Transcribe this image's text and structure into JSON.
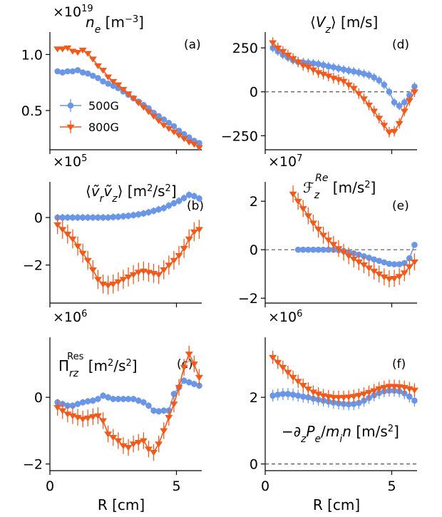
{
  "xlabel": "R [cm]",
  "xticks": [
    0,
    5
  ],
  "xlim": [
    0,
    6
  ],
  "colors": {
    "500G": "#6a96e8",
    "800G": "#f25a1c"
  },
  "legend": {
    "entries": [
      "500G",
      "800G"
    ],
    "placement": "lower-left of panel (a)"
  },
  "chart_data": [
    {
      "id": "a",
      "type": "line",
      "panel_label": "(a)",
      "title": "n_e [m^-3]",
      "multiplier": "×10^19",
      "ylim": [
        0.15,
        1.2
      ],
      "yticks": [
        0.5,
        1.0
      ],
      "ytick_labels": [
        "0.5",
        "1.0"
      ],
      "zero_line": false,
      "series": [
        {
          "name": "500G",
          "marker": "circle",
          "x": [
            0.3,
            0.5,
            0.7,
            0.9,
            1.1,
            1.3,
            1.5,
            1.7,
            1.9,
            2.1,
            2.3,
            2.5,
            2.7,
            2.9,
            3.1,
            3.3,
            3.5,
            3.7,
            3.9,
            4.1,
            4.3,
            4.5,
            4.7,
            4.9,
            5.1,
            5.3,
            5.5,
            5.7,
            5.9
          ],
          "y": [
            0.85,
            0.84,
            0.85,
            0.85,
            0.86,
            0.84,
            0.83,
            0.81,
            0.79,
            0.76,
            0.74,
            0.72,
            0.7,
            0.67,
            0.64,
            0.61,
            0.58,
            0.55,
            0.52,
            0.48,
            0.45,
            0.42,
            0.39,
            0.36,
            0.32,
            0.29,
            0.26,
            0.23,
            0.21
          ],
          "err": 0.01
        },
        {
          "name": "800G",
          "marker": "triangle-down",
          "x": [
            0.3,
            0.5,
            0.7,
            0.9,
            1.1,
            1.3,
            1.5,
            1.7,
            1.9,
            2.1,
            2.3,
            2.5,
            2.7,
            2.9,
            3.1,
            3.3,
            3.5,
            3.7,
            3.9,
            4.1,
            4.3,
            4.5,
            4.7,
            4.9,
            5.1,
            5.3,
            5.5,
            5.7,
            5.9
          ],
          "y": [
            1.05,
            1.05,
            1.06,
            1.03,
            1.02,
            1.04,
            1.01,
            0.96,
            0.9,
            0.86,
            0.8,
            0.76,
            0.73,
            0.69,
            0.65,
            0.61,
            0.57,
            0.53,
            0.49,
            0.45,
            0.41,
            0.37,
            0.34,
            0.31,
            0.28,
            0.25,
            0.22,
            0.2,
            0.17
          ],
          "err": 0.015
        }
      ]
    },
    {
      "id": "d",
      "type": "line",
      "panel_label": "(d)",
      "title": "⟨V_z⟩ [m/s]",
      "multiplier": "",
      "ylim": [
        -330,
        340
      ],
      "yticks": [
        -250,
        0,
        250
      ],
      "ytick_labels": [
        "−250",
        "0",
        "250"
      ],
      "zero_line": true,
      "series": [
        {
          "name": "500G",
          "marker": "circle",
          "x": [
            0.3,
            0.5,
            0.7,
            0.9,
            1.1,
            1.3,
            1.5,
            1.7,
            1.9,
            2.1,
            2.3,
            2.5,
            2.7,
            2.9,
            3.1,
            3.3,
            3.5,
            3.7,
            3.9,
            4.1,
            4.3,
            4.5,
            4.7,
            4.9,
            5.1,
            5.3,
            5.5,
            5.7,
            5.9
          ],
          "y": [
            250,
            230,
            210,
            195,
            180,
            170,
            168,
            165,
            162,
            158,
            152,
            145,
            140,
            133,
            127,
            121,
            116,
            110,
            103,
            95,
            82,
            65,
            40,
            0,
            -60,
            -80,
            -60,
            -20,
            30
          ],
          "err": 25
        },
        {
          "name": "800G",
          "marker": "triangle-down",
          "x": [
            0.3,
            0.5,
            0.7,
            0.9,
            1.1,
            1.3,
            1.5,
            1.7,
            1.9,
            2.1,
            2.3,
            2.5,
            2.7,
            2.9,
            3.1,
            3.3,
            3.5,
            3.7,
            3.9,
            4.1,
            4.3,
            4.5,
            4.7,
            4.9,
            5.1,
            5.3,
            5.5,
            5.7,
            5.9
          ],
          "y": [
            280,
            250,
            230,
            210,
            190,
            170,
            150,
            140,
            125,
            110,
            100,
            90,
            78,
            70,
            60,
            40,
            20,
            -10,
            -40,
            -75,
            -110,
            -150,
            -190,
            -230,
            -225,
            -180,
            -110,
            -50,
            0
          ],
          "err": 30
        }
      ]
    },
    {
      "id": "b",
      "type": "line",
      "panel_label": "(b)",
      "title": "⟨ṽ_r ṽ_z⟩ [m²/s²]",
      "multiplier": "×10^5",
      "ylim": [
        -3.6,
        1.5
      ],
      "yticks": [
        -2,
        0
      ],
      "ytick_labels": [
        "−2",
        "0"
      ],
      "zero_line": false,
      "series": [
        {
          "name": "500G",
          "marker": "circle",
          "x": [
            0.3,
            0.5,
            0.7,
            0.9,
            1.1,
            1.3,
            1.5,
            1.7,
            1.9,
            2.1,
            2.3,
            2.5,
            2.7,
            2.9,
            3.1,
            3.3,
            3.5,
            3.7,
            3.9,
            4.1,
            4.3,
            4.5,
            4.7,
            4.9,
            5.1,
            5.3,
            5.5,
            5.7,
            5.9
          ],
          "y": [
            0,
            0,
            0,
            0,
            0,
            0,
            0,
            0,
            0,
            0,
            0,
            0.02,
            0.03,
            0.05,
            0.07,
            0.1,
            0.13,
            0.17,
            0.22,
            0.28,
            0.34,
            0.4,
            0.5,
            0.6,
            0.7,
            0.82,
            0.95,
            0.9,
            0.8
          ],
          "err": 0.15
        },
        {
          "name": "800G",
          "marker": "triangle-down",
          "x": [
            0.3,
            0.5,
            0.7,
            0.9,
            1.1,
            1.3,
            1.5,
            1.7,
            1.9,
            2.1,
            2.3,
            2.5,
            2.7,
            2.9,
            3.1,
            3.3,
            3.5,
            3.7,
            3.9,
            4.1,
            4.3,
            4.5,
            4.7,
            4.9,
            5.1,
            5.3,
            5.5,
            5.7,
            5.9
          ],
          "y": [
            -0.3,
            -0.5,
            -0.7,
            -0.9,
            -1.2,
            -1.5,
            -1.8,
            -2.2,
            -2.6,
            -2.8,
            -2.85,
            -2.8,
            -2.7,
            -2.6,
            -2.5,
            -2.4,
            -2.3,
            -2.25,
            -2.3,
            -2.35,
            -2.4,
            -2.2,
            -2.0,
            -1.8,
            -1.6,
            -1.3,
            -0.9,
            -0.6,
            -0.5
          ],
          "err": 0.4
        }
      ]
    },
    {
      "id": "e",
      "type": "line",
      "panel_label": "(e)",
      "title": "F_z^Re [m/s²]",
      "multiplier": "×10^7",
      "ylim": [
        -2.2,
        2.8
      ],
      "yticks": [
        -2,
        0,
        2
      ],
      "ytick_labels": [
        "−2",
        "0",
        "2"
      ],
      "zero_line": true,
      "series": [
        {
          "name": "500G",
          "marker": "circle",
          "x": [
            1.3,
            1.5,
            1.7,
            1.9,
            2.1,
            2.3,
            2.5,
            2.7,
            2.9,
            3.1,
            3.3,
            3.5,
            3.7,
            3.9,
            4.1,
            4.3,
            4.5,
            4.7,
            4.9,
            5.1,
            5.3,
            5.5,
            5.7,
            5.9
          ],
          "y": [
            0,
            0,
            0,
            0,
            0,
            0,
            0,
            0,
            -0.02,
            -0.05,
            -0.1,
            -0.15,
            -0.2,
            -0.27,
            -0.33,
            -0.4,
            -0.46,
            -0.52,
            -0.58,
            -0.6,
            -0.6,
            -0.55,
            -0.35,
            0.2
          ],
          "err": 0.12
        },
        {
          "name": "800G",
          "marker": "triangle-down",
          "x": [
            1.1,
            1.3,
            1.5,
            1.7,
            1.9,
            2.1,
            2.3,
            2.5,
            2.7,
            2.9,
            3.1,
            3.3,
            3.5,
            3.7,
            3.9,
            4.1,
            4.3,
            4.5,
            4.7,
            4.9,
            5.1,
            5.3,
            5.5,
            5.7,
            5.9
          ],
          "y": [
            2.3,
            2.0,
            1.7,
            1.4,
            1.1,
            0.85,
            0.6,
            0.4,
            0.22,
            0.05,
            -0.1,
            -0.25,
            -0.38,
            -0.5,
            -0.62,
            -0.75,
            -0.88,
            -1.0,
            -1.12,
            -1.2,
            -1.18,
            -1.1,
            -0.95,
            -0.7,
            -0.5
          ],
          "err": 0.35
        }
      ]
    },
    {
      "id": "c",
      "type": "line",
      "panel_label": "(c)",
      "title": "Π_rz^Res [m²/s²]",
      "multiplier": "×10^6",
      "ylim": [
        -2.2,
        1.8
      ],
      "yticks": [
        -2,
        0
      ],
      "ytick_labels": [
        "−2",
        "0"
      ],
      "zero_line": false,
      "series": [
        {
          "name": "500G",
          "marker": "circle",
          "x": [
            0.3,
            0.5,
            0.7,
            0.9,
            1.1,
            1.3,
            1.5,
            1.7,
            1.9,
            2.1,
            2.3,
            2.5,
            2.7,
            2.9,
            3.1,
            3.3,
            3.5,
            3.7,
            3.9,
            4.1,
            4.3,
            4.5,
            4.7,
            4.9,
            5.1,
            5.3,
            5.5,
            5.7,
            5.9
          ],
          "y": [
            -0.15,
            -0.2,
            -0.25,
            -0.25,
            -0.2,
            -0.15,
            -0.12,
            -0.1,
            -0.05,
            0.05,
            0.0,
            -0.05,
            -0.05,
            -0.05,
            -0.05,
            -0.05,
            -0.1,
            -0.15,
            -0.25,
            -0.4,
            -0.42,
            -0.4,
            -0.4,
            0.1,
            0.3,
            0.5,
            0.45,
            0.4,
            0.35
          ],
          "err": 0.1
        },
        {
          "name": "800G",
          "marker": "triangle-down",
          "x": [
            0.3,
            0.5,
            0.7,
            0.9,
            1.1,
            1.3,
            1.5,
            1.7,
            1.9,
            2.1,
            2.3,
            2.5,
            2.7,
            2.9,
            3.1,
            3.3,
            3.5,
            3.7,
            3.9,
            4.1,
            4.3,
            4.5,
            4.7,
            4.9,
            5.1,
            5.3,
            5.5,
            5.7,
            5.9
          ],
          "y": [
            -0.3,
            -0.4,
            -0.5,
            -0.55,
            -0.6,
            -0.65,
            -0.62,
            -0.58,
            -0.55,
            -0.7,
            -1.1,
            -1.2,
            -1.3,
            -1.45,
            -1.5,
            -1.4,
            -1.35,
            -1.3,
            -1.55,
            -1.65,
            -1.4,
            -1.0,
            -0.6,
            -0.2,
            0.3,
            0.9,
            1.3,
            1.0,
            0.6
          ],
          "err": 0.25
        }
      ]
    },
    {
      "id": "f",
      "type": "line",
      "panel_label": "(f)",
      "title": "−∂_z P_e / m_i n [m/s²]",
      "multiplier": "×10^6",
      "ylim": [
        -0.2,
        3.8
      ],
      "yticks": [
        0,
        2
      ],
      "ytick_labels": [
        "0",
        "2"
      ],
      "zero_line": true,
      "series": [
        {
          "name": "500G",
          "marker": "circle",
          "x": [
            0.3,
            0.5,
            0.7,
            0.9,
            1.1,
            1.3,
            1.5,
            1.7,
            1.9,
            2.1,
            2.3,
            2.5,
            2.7,
            2.9,
            3.1,
            3.3,
            3.5,
            3.7,
            3.9,
            4.1,
            4.3,
            4.5,
            4.7,
            4.9,
            5.1,
            5.3,
            5.5,
            5.7,
            5.9
          ],
          "y": [
            2.05,
            2.08,
            2.1,
            2.1,
            2.08,
            2.05,
            2.02,
            2.0,
            1.96,
            1.93,
            1.9,
            1.87,
            1.84,
            1.82,
            1.8,
            1.79,
            1.8,
            1.83,
            1.9,
            1.98,
            2.06,
            2.13,
            2.18,
            2.2,
            2.2,
            2.18,
            2.12,
            2.02,
            1.9
          ],
          "err": 0.18
        },
        {
          "name": "800G",
          "marker": "triangle-down",
          "x": [
            0.3,
            0.5,
            0.7,
            0.9,
            1.1,
            1.3,
            1.5,
            1.7,
            1.9,
            2.1,
            2.3,
            2.5,
            2.7,
            2.9,
            3.1,
            3.3,
            3.5,
            3.7,
            3.9,
            4.1,
            4.3,
            4.5,
            4.7,
            4.9,
            5.1,
            5.3,
            5.5,
            5.7,
            5.9
          ],
          "y": [
            3.2,
            3.05,
            2.9,
            2.75,
            2.6,
            2.48,
            2.36,
            2.25,
            2.16,
            2.1,
            2.05,
            2.02,
            2.0,
            2.0,
            2.0,
            2.01,
            2.03,
            2.06,
            2.1,
            2.15,
            2.2,
            2.26,
            2.3,
            2.33,
            2.33,
            2.32,
            2.3,
            2.26,
            2.22
          ],
          "err": 0.2
        }
      ]
    }
  ]
}
